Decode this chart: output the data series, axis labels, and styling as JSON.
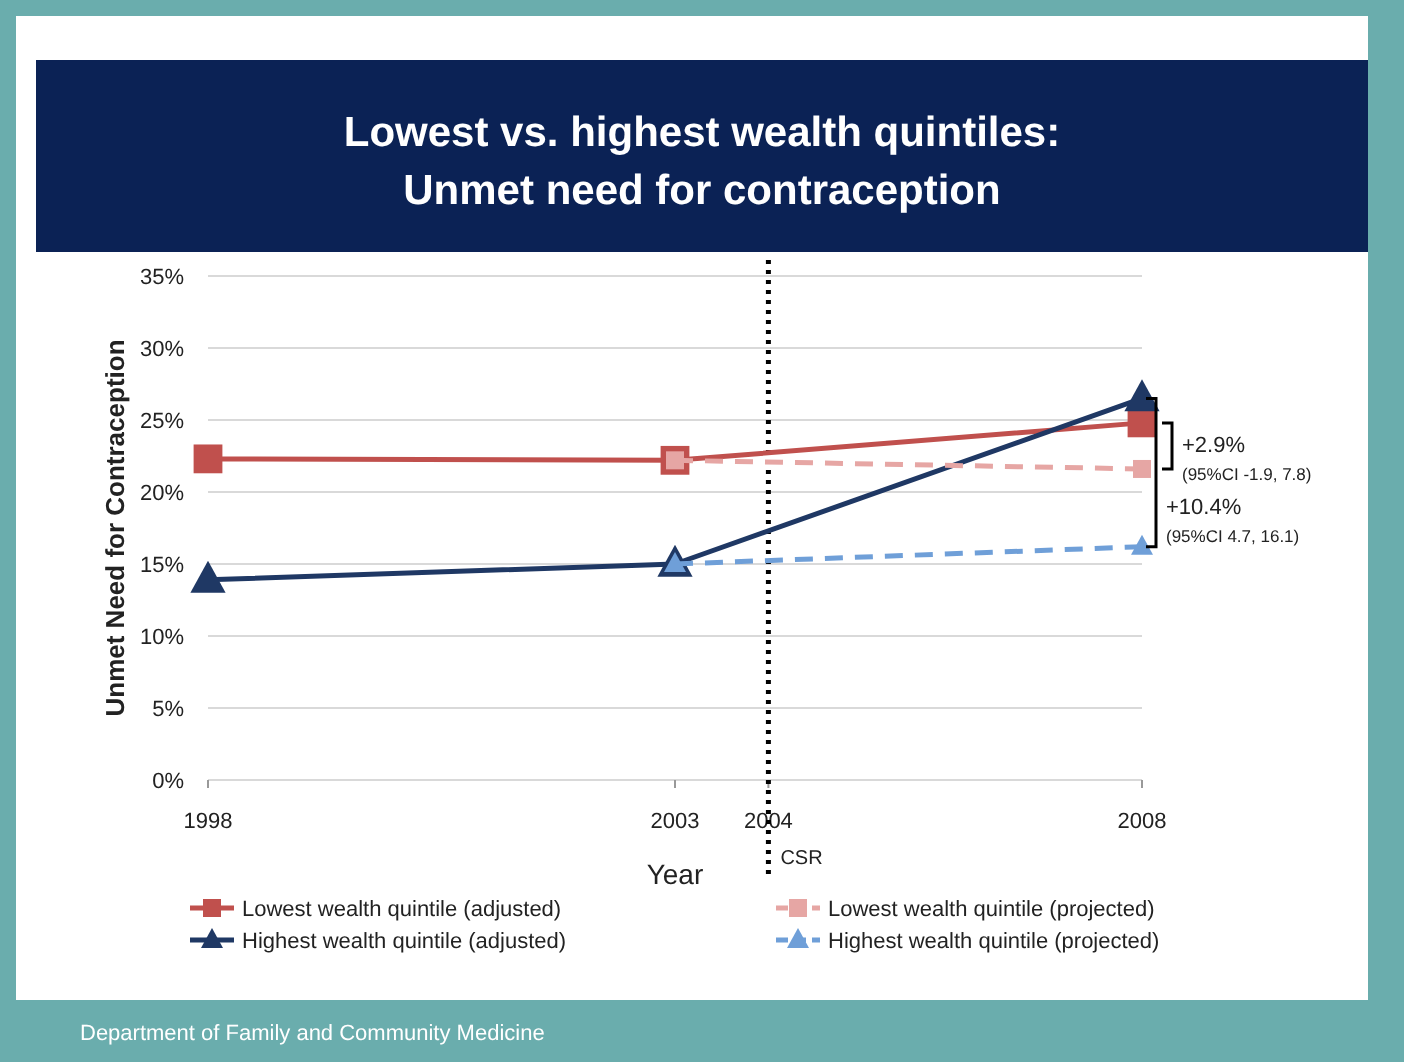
{
  "chart_data": {
    "type": "line",
    "title": "Lowest vs. highest wealth quintiles:\nUnmet need for contraception",
    "xlabel": "Year",
    "ylabel": "Unmet Need for Contraception",
    "xlim": [
      1998,
      2008
    ],
    "xticks": [
      1998,
      2003,
      2004,
      2008
    ],
    "ylim": [
      0,
      35
    ],
    "yticks": [
      {
        "value": 0,
        "label": "0%"
      },
      {
        "value": 5,
        "label": "5%"
      },
      {
        "value": 10,
        "label": "10%"
      },
      {
        "value": 15,
        "label": "15%"
      },
      {
        "value": 20,
        "label": "20%"
      },
      {
        "value": 25,
        "label": "25%"
      },
      {
        "value": 30,
        "label": "30%"
      },
      {
        "value": 35,
        "label": "35%"
      }
    ],
    "grid": "y",
    "legend": "bottom",
    "series": [
      {
        "name": "Lowest wealth quintile (adjusted)",
        "color": "#c0504d",
        "x": [
          1998,
          2003,
          2008
        ],
        "values": [
          22.3,
          22.2,
          24.8
        ],
        "marker": "square",
        "line_style": "solid"
      },
      {
        "name": "Highest wealth quintile (adjusted)",
        "color": "#1f3864",
        "x": [
          1998,
          2003,
          2008
        ],
        "values": [
          13.9,
          15.0,
          26.5
        ],
        "marker": "triangle",
        "line_style": "solid"
      },
      {
        "name": "Lowest wealth quintile (projected)",
        "color": "#e6a6a4",
        "x": [
          2003,
          2008
        ],
        "values": [
          22.2,
          21.6
        ],
        "marker": "square",
        "line_style": "dashed"
      },
      {
        "name": "Highest wealth quintile (projected)",
        "color": "#6f9fd8",
        "x": [
          2003,
          2008
        ],
        "values": [
          15.0,
          16.2
        ],
        "marker": "triangle",
        "line_style": "dashed"
      }
    ],
    "ref_lines": [
      {
        "axis": "x",
        "value": 2004,
        "label": "CSR",
        "color": "#000000",
        "line_style": "dotted"
      }
    ],
    "annotations": [
      "+2.9%",
      "(95%CI -1.9, 7.8)",
      "+10.4%",
      "(95%CI 4.7, 16.1)",
      "Department of Family and Community Medicine"
    ]
  }
}
